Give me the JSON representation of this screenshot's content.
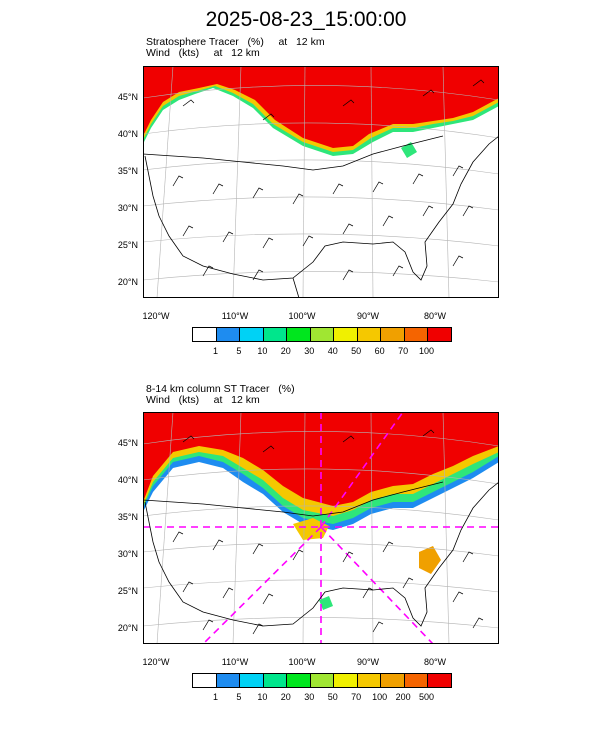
{
  "title": "2025-08-23_15:00:00",
  "panels": [
    {
      "label_line1": "Stratosphere Tracer   (%)     at   12 km",
      "label_line2": "Wind   (kts)     at   12 km",
      "lat_labels": [
        "45°N",
        "40°N",
        "35°N",
        "30°N",
        "25°N",
        "20°N"
      ],
      "lon_labels": [
        "120°W",
        "110°W",
        "100°W",
        "90°W",
        "80°W"
      ],
      "colorbar": {
        "colors": [
          "#ffffff",
          "#1e8cf0",
          "#00d2f5",
          "#00e68c",
          "#00e61e",
          "#a0e632",
          "#f0f000",
          "#f5c800",
          "#f0a000",
          "#f56400",
          "#f00000"
        ],
        "labels": [
          "1",
          "5",
          "10",
          "20",
          "30",
          "40",
          "50",
          "60",
          "70",
          "100"
        ]
      }
    },
    {
      "label_line1": "8-14 km column ST Tracer   (%)",
      "label_line2": "Wind   (kts)     at   12 km",
      "lat_labels": [
        "45°N",
        "40°N",
        "35°N",
        "30°N",
        "25°N",
        "20°N"
      ],
      "lon_labels": [
        "120°W",
        "110°W",
        "100°W",
        "90°W",
        "80°W"
      ],
      "colorbar": {
        "colors": [
          "#ffffff",
          "#1e8cf0",
          "#00d2f5",
          "#00e68c",
          "#00e61e",
          "#a0e632",
          "#f0f000",
          "#f5c800",
          "#f0a000",
          "#f56400",
          "#f00000"
        ],
        "labels": [
          "1",
          "5",
          "10",
          "20",
          "30",
          "50",
          "70",
          "100",
          "200",
          "500"
        ]
      }
    }
  ]
}
